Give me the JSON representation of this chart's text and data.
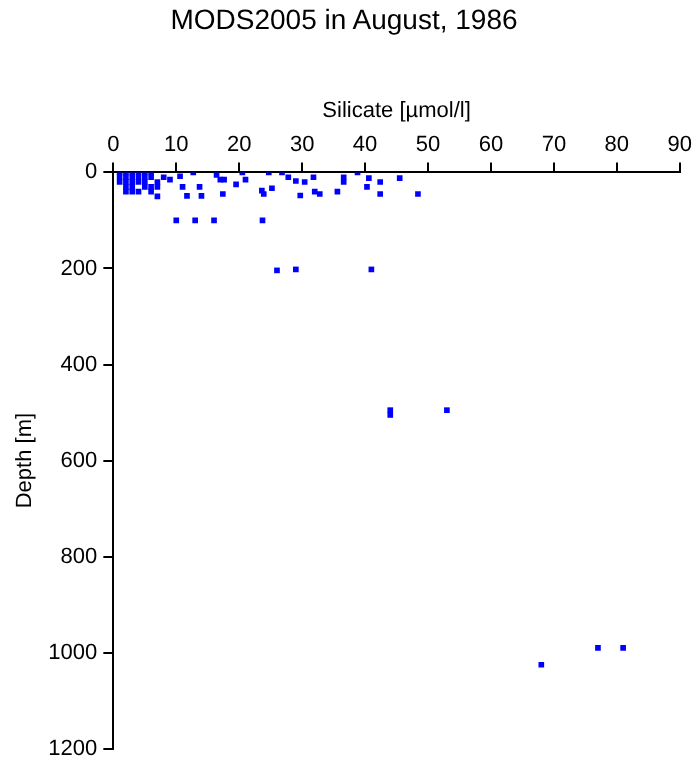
{
  "chart_data": {
    "type": "scatter",
    "title": "MODS2005 in August, 1986",
    "xlabel": "Silicate [µmol/l]",
    "ylabel": "Depth [m]",
    "xlim": [
      0,
      90
    ],
    "xticks": [
      0,
      10,
      20,
      30,
      40,
      50,
      60,
      70,
      80,
      90
    ],
    "ylim": [
      1200,
      0
    ],
    "yticks": [
      0,
      200,
      400,
      600,
      800,
      1000,
      1200
    ],
    "grid": false,
    "legend": false,
    "marker": "square",
    "series": [
      {
        "color": "#0000ff",
        "x": [
          1,
          2,
          3,
          4,
          5,
          6,
          1,
          2,
          3,
          4,
          5,
          6,
          1,
          2,
          3,
          4,
          5,
          7,
          2,
          3,
          5,
          6,
          7,
          2,
          3,
          4,
          6,
          7,
          8,
          9,
          10.6,
          11,
          11.7,
          12.7,
          13.7,
          14,
          16.4,
          17,
          17.6,
          17.4,
          19.5,
          20.5,
          21,
          23.6,
          23.9,
          24.7,
          25.2,
          26.8,
          27.8,
          29,
          29.7,
          30.4,
          31.8,
          32,
          32.8,
          35.6,
          36.6,
          36.6,
          38.8,
          40.3,
          40.6,
          42.4,
          42.4,
          45.5,
          48.4,
          10,
          13,
          16,
          23.7,
          26,
          29,
          41,
          44,
          44,
          53,
          68,
          77,
          81
        ],
        "values": [
          0,
          0,
          0,
          0,
          0,
          0,
          10,
          10,
          10,
          10,
          10,
          10,
          20,
          20,
          20,
          20,
          20,
          20,
          30,
          30,
          30,
          30,
          30,
          40,
          40,
          40,
          40,
          50,
          10,
          15,
          8,
          30,
          49,
          0,
          30,
          49,
          5,
          15,
          15,
          45,
          25,
          0,
          15,
          38,
          45,
          0,
          33,
          0,
          10,
          18,
          48,
          20,
          10,
          40,
          45,
          40,
          20,
          10,
          0,
          30,
          12,
          20,
          45,
          12,
          45,
          100,
          100,
          100,
          100,
          204,
          202,
          202,
          495,
          505,
          495,
          1025,
          990,
          990
        ]
      }
    ]
  }
}
